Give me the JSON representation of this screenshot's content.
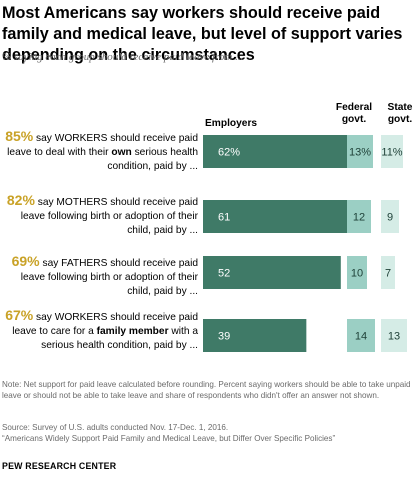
{
  "title": "Most Americans say workers should receive paid family and medical leave, but level of support varies depending on the circumstances",
  "subtitle": "% saying each group should receive paid leave from ...",
  "columns": {
    "employers": "Employers",
    "federal": "Federal govt.",
    "state": "State govt."
  },
  "colors": {
    "employers_bar": "#3f7a67",
    "federal_bar": "#9bcfc4",
    "state_bar": "#d5ece6",
    "pct_highlight": "#c9a227",
    "note_text": "#6b6b6b"
  },
  "rows": [
    {
      "pct": "85%",
      "label_a": " say WORKERS should receive paid leave to deal with their ",
      "label_b": "own",
      "label_c": " serious health condition, paid by ..."
    },
    {
      "pct": "82%",
      "label_a": " say MOTHERS should receive paid leave following birth or adoption of their child, paid by ..."
    },
    {
      "pct": "69%",
      "label_a": " say FATHERS should receive paid leave following birth or adoption of their child, paid by ..."
    },
    {
      "pct": "67%",
      "label_a": " say WORKERS should receive paid leave to care for a ",
      "label_b": "family member",
      "label_c": " with a serious health condition, paid by ..."
    }
  ],
  "chart_data": {
    "type": "bar",
    "title": "Most Americans say workers should receive paid family and medical leave, but level of support varies depending on the circumstances",
    "categories": [
      "85% say WORKERS should receive paid leave to deal with their own serious health condition, paid by ...",
      "82% say MOTHERS should receive paid leave following birth or adoption of their child, paid by ...",
      "69% say FATHERS should receive paid leave following birth or adoption of their child, paid by ...",
      "67% say WORKERS should receive paid leave to care for a family member with a serious health condition, paid by ..."
    ],
    "series": [
      {
        "name": "Employers",
        "values": [
          62,
          61,
          52,
          39
        ],
        "labels": [
          "62%",
          "61",
          "52",
          "39"
        ]
      },
      {
        "name": "Federal govt.",
        "values": [
          13,
          12,
          10,
          14
        ],
        "labels": [
          "13%",
          "12",
          "10",
          "14"
        ]
      },
      {
        "name": "State govt.",
        "values": [
          11,
          9,
          7,
          13
        ],
        "labels": [
          "11%",
          "9",
          "7",
          "13"
        ]
      }
    ],
    "unit": "%",
    "legend": "column headers",
    "grid": false
  },
  "note": "Note: Net support for paid leave calculated before rounding. Percent saying workers should be able to take unpaid leave or should not be able to take leave and share of respondents who didn't offer an answer not shown.",
  "source": "Source: Survey of U.S. adults conducted Nov. 17-Dec. 1, 2016.",
  "report": "“Americans Widely Support Paid Family and Medical Leave, but Differ Over Specific Policies”",
  "org": "PEW RESEARCH CENTER"
}
